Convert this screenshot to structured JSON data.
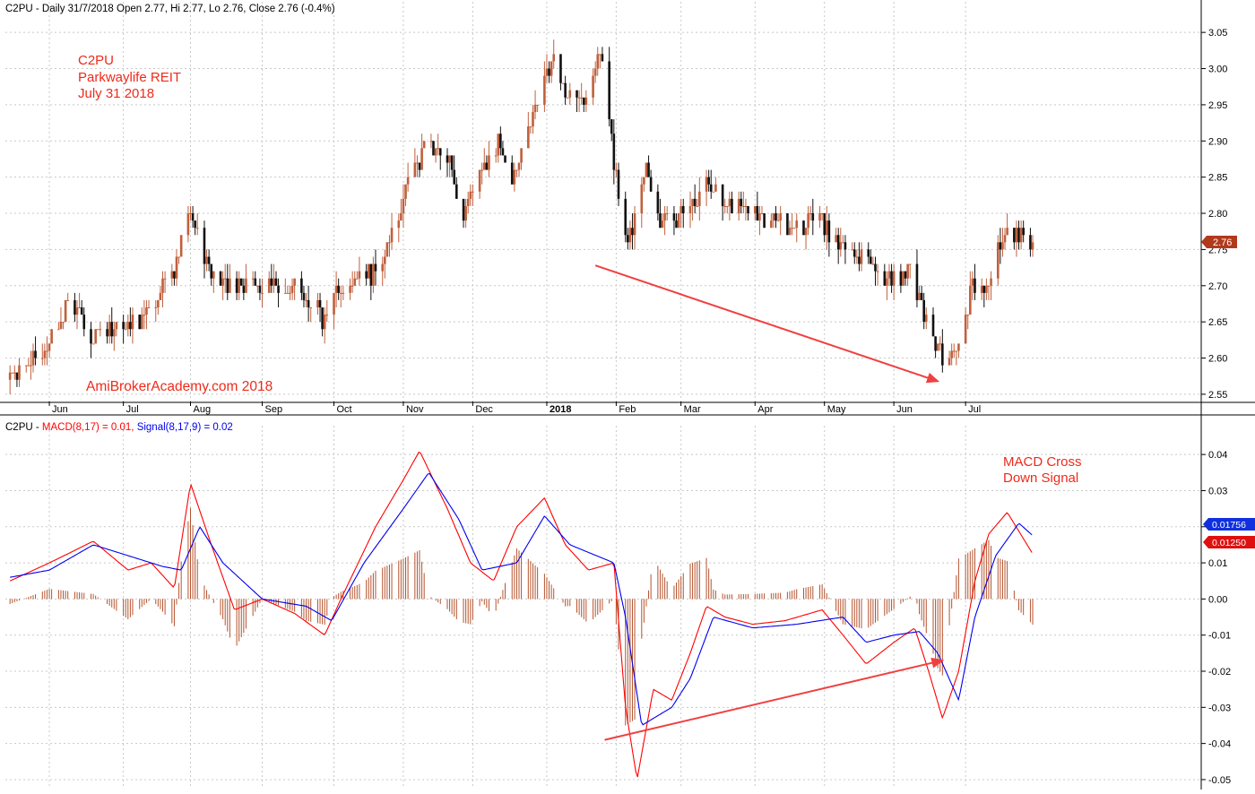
{
  "price_panel": {
    "header": "C2PU - Daily 31/7/2018 Open 2.77, Hi 2.77, Lo 2.76, Close 2.76 (-0.4%)",
    "annotation_lines": [
      "C2PU",
      "Parkwaylife REIT",
      "July 31 2018"
    ],
    "watermark": "AmiBrokerAcademy.com  2018",
    "last_price_label": "2.76"
  },
  "macd_panel": {
    "header_prefix": "C2PU - ",
    "header_macd": "MACD(8,17) = 0.01, ",
    "header_signal": "Signal(8,17,9) = 0.02",
    "annotation_lines": [
      "MACD Cross",
      "Down Signal"
    ],
    "macd_value_label": "0.01250",
    "signal_value_label": "0.01756"
  },
  "colors": {
    "bull_candle": "#c0603c",
    "bear_candle": "#111111",
    "macd_line": "#ff0000",
    "signal_line": "#0000ee",
    "histogram": "#b5532e",
    "annotation": "#ee2a1a",
    "trendline": "#f04040",
    "grid": "#c8c8c8"
  },
  "chart_data": [
    {
      "type": "candlestick",
      "symbol": "C2PU",
      "ylim": [
        2.54,
        3.07
      ],
      "y_ticks": [
        "2.55",
        "2.60",
        "2.65",
        "2.70",
        "2.75",
        "2.80",
        "2.85",
        "2.90",
        "2.95",
        "3.00",
        "3.05"
      ],
      "x_month_labels": [
        "Jun",
        "Jul",
        "Aug",
        "Sep",
        "Oct",
        "Nov",
        "Dec",
        "2018",
        "Feb",
        "Mar",
        "Apr",
        "May",
        "Jun",
        "Jul"
      ],
      "trend_anchors": [
        [
          "2017-05-15",
          2.57
        ],
        [
          "2017-06-01",
          2.62
        ],
        [
          "2017-06-10",
          2.68
        ],
        [
          "2017-06-20",
          2.63
        ],
        [
          "2017-07-10",
          2.65
        ],
        [
          "2017-07-25",
          2.72
        ],
        [
          "2017-08-01",
          2.8
        ],
        [
          "2017-08-08",
          2.74
        ],
        [
          "2017-08-15",
          2.7
        ],
        [
          "2017-08-31",
          2.7
        ],
        [
          "2017-09-15",
          2.7
        ],
        [
          "2017-09-28",
          2.65
        ],
        [
          "2017-10-05",
          2.7
        ],
        [
          "2017-10-20",
          2.72
        ],
        [
          "2017-11-01",
          2.82
        ],
        [
          "2017-11-10",
          2.89
        ],
        [
          "2017-11-20",
          2.88
        ],
        [
          "2017-11-27",
          2.8
        ],
        [
          "2017-12-05",
          2.85
        ],
        [
          "2017-12-12",
          2.9
        ],
        [
          "2017-12-18",
          2.85
        ],
        [
          "2017-12-26",
          2.93
        ],
        [
          "2018-01-04",
          3.01
        ],
        [
          "2018-01-12",
          2.96
        ],
        [
          "2018-01-17",
          2.95
        ],
        [
          "2018-01-22",
          3.0
        ],
        [
          "2018-01-27",
          3.02
        ],
        [
          "2018-01-31",
          2.87
        ],
        [
          "2018-02-05",
          2.76
        ],
        [
          "2018-02-10",
          2.8
        ],
        [
          "2018-02-14",
          2.87
        ],
        [
          "2018-02-20",
          2.79
        ],
        [
          "2018-03-05",
          2.8
        ],
        [
          "2018-03-12",
          2.85
        ],
        [
          "2018-03-20",
          2.81
        ],
        [
          "2018-04-01",
          2.8
        ],
        [
          "2018-04-15",
          2.78
        ],
        [
          "2018-04-30",
          2.79
        ],
        [
          "2018-05-08",
          2.76
        ],
        [
          "2018-05-20",
          2.73
        ],
        [
          "2018-06-01",
          2.71
        ],
        [
          "2018-06-08",
          2.72
        ],
        [
          "2018-06-12",
          2.68
        ],
        [
          "2018-06-18",
          2.62
        ],
        [
          "2018-06-25",
          2.59
        ],
        [
          "2018-06-29",
          2.62
        ],
        [
          "2018-07-05",
          2.7
        ],
        [
          "2018-07-12",
          2.71
        ],
        [
          "2018-07-20",
          2.78
        ],
        [
          "2018-07-31",
          2.76
        ]
      ],
      "annotations": [
        "Price trendline drawn downward from early February 2018 high toward late June 2018 low"
      ]
    },
    {
      "type": "line",
      "name": "MACD",
      "ylim": [
        -0.052,
        0.045
      ],
      "y_ticks": [
        "0.04",
        "0.03",
        "0.02",
        "0.01",
        "0.00",
        "-0.01",
        "-0.02",
        "-0.03",
        "-0.04",
        "-0.05"
      ],
      "series": [
        {
          "name": "MACD(8,17)",
          "points": [
            [
              "2017-05-15",
              0.005
            ],
            [
              "2017-06-01",
              0.01
            ],
            [
              "2017-06-20",
              0.016
            ],
            [
              "2017-07-05",
              0.008
            ],
            [
              "2017-07-15",
              0.01
            ],
            [
              "2017-07-25",
              0.003
            ],
            [
              "2017-08-01",
              0.032
            ],
            [
              "2017-08-10",
              0.015
            ],
            [
              "2017-08-20",
              -0.003
            ],
            [
              "2017-09-01",
              0.0
            ],
            [
              "2017-09-15",
              -0.004
            ],
            [
              "2017-09-28",
              -0.01
            ],
            [
              "2017-10-05",
              0.0
            ],
            [
              "2017-10-20",
              0.02
            ],
            [
              "2017-11-01",
              0.033
            ],
            [
              "2017-11-08",
              0.041
            ],
            [
              "2017-11-20",
              0.025
            ],
            [
              "2017-11-30",
              0.01
            ],
            [
              "2017-12-10",
              0.005
            ],
            [
              "2017-12-20",
              0.02
            ],
            [
              "2018-01-01",
              0.028
            ],
            [
              "2018-01-10",
              0.015
            ],
            [
              "2018-01-20",
              0.008
            ],
            [
              "2018-01-31",
              0.01
            ],
            [
              "2018-02-05",
              -0.03
            ],
            [
              "2018-02-10",
              -0.05
            ],
            [
              "2018-02-17",
              -0.025
            ],
            [
              "2018-02-25",
              -0.028
            ],
            [
              "2018-03-05",
              -0.015
            ],
            [
              "2018-03-12",
              -0.002
            ],
            [
              "2018-03-20",
              -0.005
            ],
            [
              "2018-04-01",
              -0.007
            ],
            [
              "2018-04-15",
              -0.006
            ],
            [
              "2018-05-01",
              -0.003
            ],
            [
              "2018-05-10",
              -0.01
            ],
            [
              "2018-05-20",
              -0.018
            ],
            [
              "2018-06-01",
              -0.012
            ],
            [
              "2018-06-10",
              -0.008
            ],
            [
              "2018-06-16",
              -0.02
            ],
            [
              "2018-06-22",
              -0.033
            ],
            [
              "2018-06-29",
              -0.02
            ],
            [
              "2018-07-06",
              0.005
            ],
            [
              "2018-07-12",
              0.018
            ],
            [
              "2018-07-20",
              0.024
            ],
            [
              "2018-07-31",
              0.0125
            ]
          ]
        },
        {
          "name": "Signal(8,17,9)",
          "points": [
            [
              "2017-05-15",
              0.006
            ],
            [
              "2017-06-01",
              0.008
            ],
            [
              "2017-06-20",
              0.015
            ],
            [
              "2017-07-05",
              0.012
            ],
            [
              "2017-07-20",
              0.009
            ],
            [
              "2017-07-28",
              0.008
            ],
            [
              "2017-08-05",
              0.02
            ],
            [
              "2017-08-15",
              0.01
            ],
            [
              "2017-09-01",
              0.0
            ],
            [
              "2017-09-20",
              -0.002
            ],
            [
              "2017-10-01",
              -0.006
            ],
            [
              "2017-10-15",
              0.01
            ],
            [
              "2017-11-01",
              0.025
            ],
            [
              "2017-11-12",
              0.035
            ],
            [
              "2017-11-25",
              0.022
            ],
            [
              "2017-12-05",
              0.008
            ],
            [
              "2017-12-20",
              0.01
            ],
            [
              "2018-01-01",
              0.023
            ],
            [
              "2018-01-12",
              0.015
            ],
            [
              "2018-01-31",
              0.01
            ],
            [
              "2018-02-05",
              -0.005
            ],
            [
              "2018-02-12",
              -0.035
            ],
            [
              "2018-02-25",
              -0.03
            ],
            [
              "2018-03-05",
              -0.022
            ],
            [
              "2018-03-15",
              -0.005
            ],
            [
              "2018-04-01",
              -0.008
            ],
            [
              "2018-04-20",
              -0.007
            ],
            [
              "2018-05-10",
              -0.005
            ],
            [
              "2018-05-20",
              -0.012
            ],
            [
              "2018-06-01",
              -0.01
            ],
            [
              "2018-06-12",
              -0.009
            ],
            [
              "2018-06-20",
              -0.015
            ],
            [
              "2018-06-29",
              -0.028
            ],
            [
              "2018-07-06",
              -0.005
            ],
            [
              "2018-07-15",
              0.012
            ],
            [
              "2018-07-25",
              0.021
            ],
            [
              "2018-07-31",
              0.01756
            ]
          ]
        }
      ],
      "annotations": [
        "MACD trendline drawn upward from mid February 2018 low toward late June 2018",
        "MACD Cross Down Signal"
      ]
    }
  ]
}
